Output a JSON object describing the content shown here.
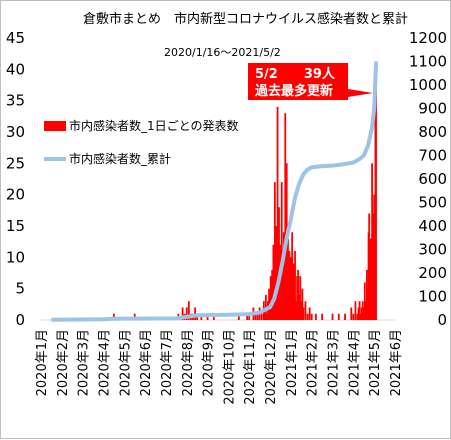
{
  "chart_data": {
    "type": "bar+line",
    "title": "倉敷市まとめ　市内新型コロナウイルス感染者数と累計",
    "subtitle": "2020/1/16～2021/5/2",
    "y_left": {
      "ylim": [
        0,
        45
      ],
      "ticks": [
        "0",
        "5",
        "10",
        "15",
        "20",
        "25",
        "30",
        "35",
        "40",
        "45"
      ]
    },
    "y_right": {
      "ylim": [
        0,
        1200
      ],
      "ticks": [
        "0",
        "100",
        "200",
        "300",
        "400",
        "500",
        "600",
        "700",
        "800",
        "900",
        "1000",
        "1100",
        "1200"
      ]
    },
    "x_ticks": [
      "2020年1月",
      "2020年2月",
      "2020年3月",
      "2020年4月",
      "2020年5月",
      "2020年6月",
      "2020年7月",
      "2020年8月",
      "2020年9月",
      "2020年10月",
      "2020年11月",
      "2020年12月",
      "2021年1月",
      "2021年2月",
      "2021年3月",
      "2021年4月",
      "2021年5月",
      "2021年6月"
    ],
    "series": [
      {
        "name": "市内感染者数_1日ごとの発表数",
        "axis": "left",
        "kind": "bar",
        "color": "#ff0000",
        "points": [
          [
            3.5,
            1
          ],
          [
            4.5,
            1
          ],
          [
            6.6,
            1
          ],
          [
            6.8,
            2
          ],
          [
            6.9,
            1
          ],
          [
            7.0,
            2
          ],
          [
            7.1,
            3
          ],
          [
            7.2,
            1
          ],
          [
            7.3,
            1
          ],
          [
            7.4,
            2
          ],
          [
            7.5,
            1
          ],
          [
            7.7,
            1
          ],
          [
            8.0,
            1
          ],
          [
            8.3,
            1
          ],
          [
            9.5,
            1
          ],
          [
            9.9,
            1
          ],
          [
            10.0,
            1
          ],
          [
            10.2,
            2
          ],
          [
            10.3,
            1
          ],
          [
            10.4,
            1
          ],
          [
            10.5,
            2
          ],
          [
            10.6,
            1
          ],
          [
            10.7,
            3
          ],
          [
            10.75,
            2
          ],
          [
            10.8,
            4
          ],
          [
            10.85,
            1
          ],
          [
            10.9,
            3
          ],
          [
            10.95,
            5
          ],
          [
            11.0,
            4
          ],
          [
            11.03,
            7
          ],
          [
            11.06,
            3
          ],
          [
            11.1,
            8
          ],
          [
            11.13,
            5
          ],
          [
            11.16,
            12
          ],
          [
            11.2,
            6
          ],
          [
            11.23,
            22
          ],
          [
            11.26,
            8
          ],
          [
            11.3,
            15
          ],
          [
            11.33,
            5
          ],
          [
            11.36,
            34
          ],
          [
            11.4,
            9
          ],
          [
            11.43,
            18
          ],
          [
            11.46,
            7
          ],
          [
            11.5,
            12
          ],
          [
            11.53,
            4
          ],
          [
            11.56,
            22
          ],
          [
            11.6,
            10
          ],
          [
            11.63,
            6
          ],
          [
            11.66,
            14
          ],
          [
            11.7,
            5
          ],
          [
            11.73,
            33
          ],
          [
            11.76,
            9
          ],
          [
            11.8,
            25
          ],
          [
            11.83,
            6
          ],
          [
            11.86,
            13
          ],
          [
            11.9,
            4
          ],
          [
            11.93,
            11
          ],
          [
            11.96,
            7
          ],
          [
            12.0,
            10
          ],
          [
            12.03,
            5
          ],
          [
            12.06,
            14
          ],
          [
            12.1,
            6
          ],
          [
            12.13,
            9
          ],
          [
            12.16,
            4
          ],
          [
            12.2,
            11
          ],
          [
            12.25,
            3
          ],
          [
            12.3,
            7
          ],
          [
            12.35,
            8
          ],
          [
            12.4,
            4
          ],
          [
            12.45,
            7
          ],
          [
            12.5,
            3
          ],
          [
            12.55,
            5
          ],
          [
            12.6,
            2
          ],
          [
            12.7,
            3
          ],
          [
            12.8,
            1
          ],
          [
            12.9,
            2
          ],
          [
            13.0,
            1
          ],
          [
            13.2,
            1
          ],
          [
            13.5,
            1
          ],
          [
            14.0,
            1
          ],
          [
            14.3,
            1
          ],
          [
            14.6,
            1
          ],
          [
            14.9,
            2
          ],
          [
            15.0,
            1
          ],
          [
            15.1,
            3
          ],
          [
            15.2,
            1
          ],
          [
            15.25,
            2
          ],
          [
            15.3,
            3
          ],
          [
            15.35,
            1
          ],
          [
            15.4,
            2
          ],
          [
            15.45,
            3
          ],
          [
            15.5,
            2
          ],
          [
            15.55,
            6
          ],
          [
            15.6,
            3
          ],
          [
            15.65,
            8
          ],
          [
            15.7,
            5
          ],
          [
            15.73,
            14
          ],
          [
            15.76,
            17
          ],
          [
            15.8,
            9
          ],
          [
            15.83,
            13
          ],
          [
            15.86,
            10
          ],
          [
            15.9,
            25
          ],
          [
            15.93,
            15
          ],
          [
            15.96,
            17
          ],
          [
            16.0,
            20
          ],
          [
            16.03,
            14
          ],
          [
            16.06,
            33
          ],
          [
            16.09,
            39
          ]
        ]
      },
      {
        "name": "市内感染者数_累計",
        "axis": "right",
        "kind": "line",
        "color": "#9dc3e6",
        "points": [
          [
            0.5,
            1
          ],
          [
            2.0,
            2
          ],
          [
            3.0,
            3
          ],
          [
            3.5,
            5
          ],
          [
            4.5,
            6
          ],
          [
            6.5,
            7
          ],
          [
            7.0,
            13
          ],
          [
            7.5,
            20
          ],
          [
            8.0,
            21
          ],
          [
            9.0,
            22
          ],
          [
            10.0,
            25
          ],
          [
            10.5,
            32
          ],
          [
            11.0,
            55
          ],
          [
            11.2,
            90
          ],
          [
            11.4,
            160
          ],
          [
            11.6,
            250
          ],
          [
            11.8,
            350
          ],
          [
            12.0,
            430
          ],
          [
            12.2,
            520
          ],
          [
            12.4,
            580
          ],
          [
            12.6,
            620
          ],
          [
            12.8,
            640
          ],
          [
            13.0,
            650
          ],
          [
            13.5,
            655
          ],
          [
            14.0,
            657
          ],
          [
            14.5,
            662
          ],
          [
            15.0,
            670
          ],
          [
            15.3,
            685
          ],
          [
            15.5,
            700
          ],
          [
            15.7,
            740
          ],
          [
            15.9,
            820
          ],
          [
            16.0,
            900
          ],
          [
            16.05,
            1000
          ],
          [
            16.09,
            1100
          ]
        ]
      }
    ],
    "annotation": {
      "line1": "5/2　　39人",
      "line2": "過去最多更新",
      "color": "#ff0000"
    },
    "legend_placement": "upper-left",
    "grid": false
  }
}
